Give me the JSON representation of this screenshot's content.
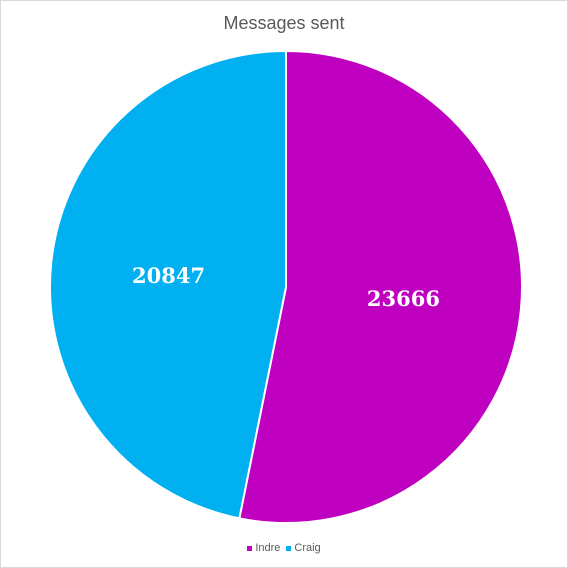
{
  "chart_data": {
    "type": "pie",
    "title": "Messages sent",
    "categories": [
      "Indre",
      "Craig"
    ],
    "values": [
      23666,
      20847
    ],
    "colors": [
      "#c000c0",
      "#00b0f0"
    ],
    "start_angle_deg": 0,
    "direction": "clockwise",
    "legend_position": "bottom",
    "data_labels": [
      "23666",
      "20847"
    ]
  }
}
